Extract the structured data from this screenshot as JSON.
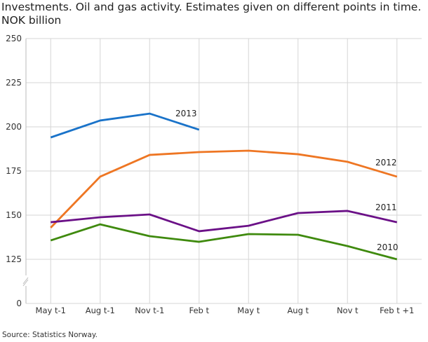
{
  "chart_data": {
    "type": "line",
    "title": "Investments. Oil and gas activity. Estimates given on different points in time. NOK billion",
    "source": "Source: Statistics Norway.",
    "categories": [
      "May t-1",
      "Aug t-1",
      "Nov t-1",
      "Feb t",
      "May t",
      "Aug t",
      "Nov t",
      "Feb t +1"
    ],
    "yticks": [
      0,
      125,
      150,
      175,
      200,
      225,
      250
    ],
    "ylim": [
      0,
      250
    ],
    "axis_break": "between 0 and 125",
    "grid": true,
    "series": [
      {
        "name": "2013",
        "color": "#1a73c9",
        "values": [
          194,
          203.6,
          207.5,
          198.4,
          null,
          null,
          null,
          null
        ]
      },
      {
        "name": "2012",
        "color": "#ee7623",
        "values": [
          142.9,
          171.8,
          184.1,
          185.7,
          186.5,
          184.5,
          180.2,
          171.8
        ]
      },
      {
        "name": "2011",
        "color": "#6b1187",
        "values": [
          146,
          148.8,
          150.4,
          140.9,
          144,
          151.2,
          152.4,
          146
        ]
      },
      {
        "name": "2010",
        "color": "#3f8a0e",
        "values": [
          135.7,
          144.8,
          138.1,
          134.9,
          139.3,
          138.9,
          132.5,
          125
        ]
      }
    ]
  }
}
